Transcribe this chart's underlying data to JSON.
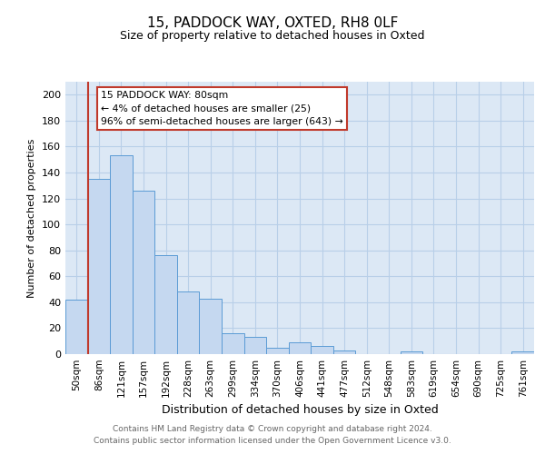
{
  "title_line1": "15, PADDOCK WAY, OXTED, RH8 0LF",
  "title_line2": "Size of property relative to detached houses in Oxted",
  "xlabel": "Distribution of detached houses by size in Oxted",
  "ylabel": "Number of detached properties",
  "categories": [
    "50sqm",
    "86sqm",
    "121sqm",
    "157sqm",
    "192sqm",
    "228sqm",
    "263sqm",
    "299sqm",
    "334sqm",
    "370sqm",
    "406sqm",
    "441sqm",
    "477sqm",
    "512sqm",
    "548sqm",
    "583sqm",
    "619sqm",
    "654sqm",
    "690sqm",
    "725sqm",
    "761sqm"
  ],
  "values": [
    42,
    135,
    153,
    126,
    76,
    48,
    43,
    16,
    13,
    5,
    9,
    6,
    3,
    0,
    0,
    2,
    0,
    0,
    0,
    0,
    2
  ],
  "bar_color": "#c5d8f0",
  "bar_edge_color": "#5b9bd5",
  "vline_color": "#c0392b",
  "annotation_text_line1": "15 PADDOCK WAY: 80sqm",
  "annotation_text_line2": "← 4% of detached houses are smaller (25)",
  "annotation_text_line3": "96% of semi-detached houses are larger (643) →",
  "annotation_box_edge_color": "#c0392b",
  "annotation_box_facecolor": "#ffffff",
  "ylim": [
    0,
    210
  ],
  "yticks": [
    0,
    20,
    40,
    60,
    80,
    100,
    120,
    140,
    160,
    180,
    200
  ],
  "grid_color": "#b8cfe8",
  "background_color": "#dce8f5",
  "footer_line1": "Contains HM Land Registry data © Crown copyright and database right 2024.",
  "footer_line2": "Contains public sector information licensed under the Open Government Licence v3.0."
}
